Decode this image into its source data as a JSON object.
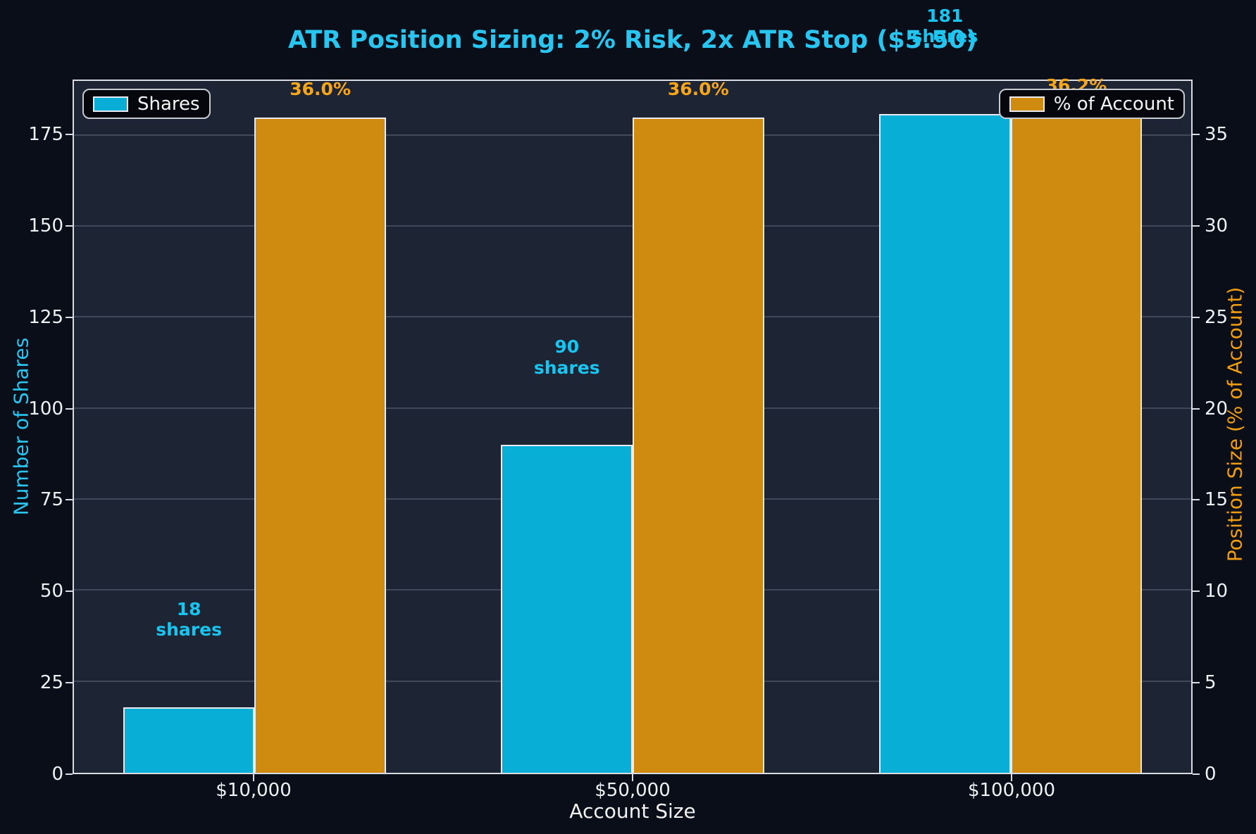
{
  "chart_data": {
    "type": "bar",
    "title": "ATR Position Sizing: 2% Risk, 2x ATR Stop ($5.50)",
    "xlabel": "Account Size",
    "categories": [
      "$10,000",
      "$50,000",
      "$100,000"
    ],
    "axes": {
      "left": {
        "label": "Number of Shares",
        "ticks": [
          0,
          25,
          50,
          75,
          100,
          125,
          150,
          175
        ],
        "lim": [
          0,
          190
        ],
        "label_color": "#29c5f1",
        "tick_color": "#eef1f4"
      },
      "right": {
        "label": "Position Size (% of Account)",
        "ticks": [
          0,
          5,
          10,
          15,
          20,
          25,
          30,
          35
        ],
        "lim": [
          0,
          38
        ],
        "label_color": "#f09d12",
        "tick_color": "#eef1f4"
      }
    },
    "series": [
      {
        "name": "Shares",
        "axis": "left",
        "values": [
          18,
          90,
          181
        ],
        "bar_labels": [
          "18\nshares",
          "90\nshares",
          "181\nshares"
        ],
        "color": "#08aed6",
        "label_color": "#19c4f0"
      },
      {
        "name": "% of Account",
        "axis": "right",
        "values": [
          36.0,
          36.0,
          36.2
        ],
        "bar_labels": [
          "36.0%",
          "36.0%",
          "36.2%"
        ],
        "color": "#cf8a10",
        "label_color": "#f9a61a"
      }
    ],
    "legend": [
      {
        "label": "Shares",
        "color": "#08aed6",
        "position": "upper-left"
      },
      {
        "label": "% of Account",
        "color": "#cf8a10",
        "position": "upper-right"
      }
    ],
    "grid": true,
    "gridline_values": [
      25,
      50,
      75,
      100,
      125,
      150,
      175
    ],
    "colors": {
      "figure_bg": "#0a0e18",
      "plot_bg": "#1d2433",
      "title": "#29c5f1",
      "shares_bar": "#08aed6",
      "percent_bar": "#cf8a10",
      "gridline": "#3f4858",
      "spine": "#d9dde3",
      "tick_text": "#eef1f4"
    }
  }
}
